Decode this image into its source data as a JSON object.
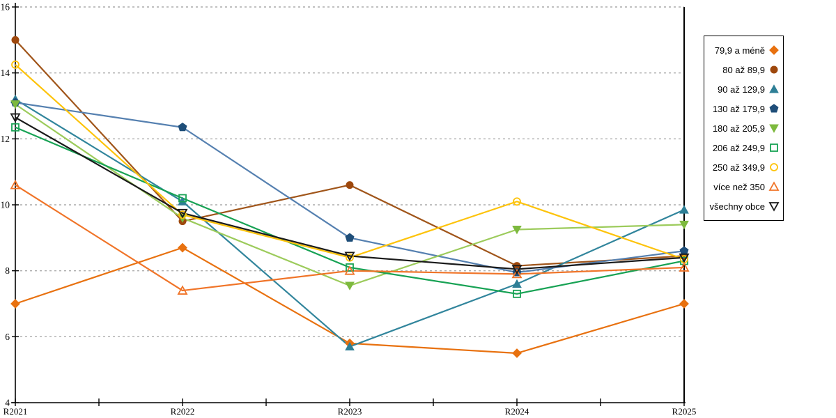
{
  "chart_data": {
    "type": "line",
    "title": "",
    "xlabel": "",
    "ylabel": "",
    "categories": [
      "R2021",
      "R2022",
      "R2023",
      "R2024",
      "R2025"
    ],
    "ylim": [
      4,
      16
    ],
    "yticks": [
      4,
      6,
      8,
      10,
      12,
      14,
      16
    ],
    "grid": "horizontal-dashed",
    "grid_color": "#ABABAB",
    "axis_color": "#000000",
    "legend_position": "right",
    "series": [
      {
        "name": "79,9 a méně",
        "marker": "diamond-filled",
        "color": "#E8710F",
        "marker_color": "#E8710F",
        "values": [
          7.0,
          8.7,
          5.8,
          5.5,
          7.0
        ]
      },
      {
        "name": "80 až 89,9",
        "marker": "circle-filled",
        "color": "#A0551A",
        "marker_color": "#9E480D",
        "values": [
          15.0,
          9.5,
          10.6,
          8.15,
          8.45
        ]
      },
      {
        "name": "90 až 129,9",
        "marker": "triangle-up-filled",
        "color": "#31859C",
        "marker_color": "#2E7F96",
        "values": [
          13.2,
          10.1,
          5.7,
          7.6,
          9.85
        ]
      },
      {
        "name": "130 až 179,9",
        "marker": "pentagon-filled",
        "color": "#5580B0",
        "marker_color": "#1F4E79",
        "values": [
          13.1,
          12.35,
          9.0,
          7.95,
          8.6
        ]
      },
      {
        "name": "180 až 205,9",
        "marker": "triangle-down-filled",
        "color": "#9CCB5B",
        "marker_color": "#7DB93E",
        "values": [
          13.05,
          9.6,
          7.55,
          9.25,
          9.4
        ]
      },
      {
        "name": "206 až 249,9",
        "marker": "square-open",
        "color": "#17A254",
        "marker_color": "#17A254",
        "values": [
          12.35,
          10.2,
          8.1,
          7.3,
          8.3
        ]
      },
      {
        "name": "250 až 349,9",
        "marker": "circle-open",
        "color": "#FDC30A",
        "marker_color": "#FDC30A",
        "values": [
          14.25,
          9.7,
          8.4,
          10.1,
          8.35
        ]
      },
      {
        "name": "více než 350",
        "marker": "triangle-up-open",
        "color": "#F07428",
        "marker_color": "#F07428",
        "values": [
          10.6,
          7.4,
          8.0,
          7.9,
          8.1
        ]
      },
      {
        "name": "všechny obce",
        "marker": "triangle-down-open",
        "color": "#1A1A1A",
        "marker_color": "#1A1A1A",
        "values": [
          12.65,
          9.75,
          8.45,
          8.05,
          8.4
        ]
      }
    ]
  }
}
